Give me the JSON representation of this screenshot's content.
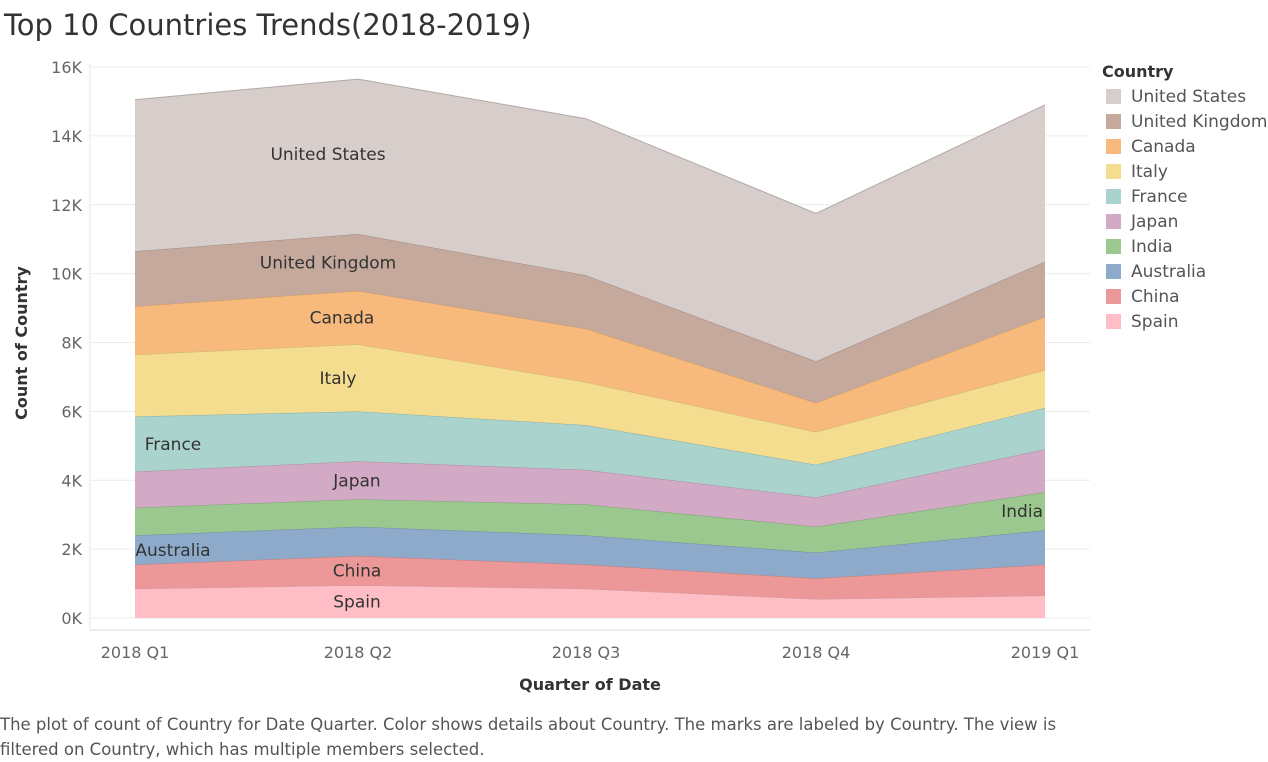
{
  "chart_data": {
    "type": "area",
    "stacked": true,
    "title": "Top 10 Countries Trends(2018-2019)",
    "xlabel": "Quarter of Date",
    "ylabel": "Count of Country",
    "categories": [
      "2018 Q1",
      "2018 Q2",
      "2018 Q3",
      "2018 Q4",
      "2019 Q1"
    ],
    "ylim": [
      0,
      16000
    ],
    "yticks": [
      0,
      2000,
      4000,
      6000,
      8000,
      10000,
      12000,
      14000,
      16000
    ],
    "ytick_labels": [
      "0K",
      "2K",
      "4K",
      "6K",
      "8K",
      "10K",
      "12K",
      "14K",
      "16K"
    ],
    "grid": true,
    "legend_title": "Country",
    "legend_position": "right",
    "series": [
      {
        "name": "Spain",
        "color": "#ffbec5",
        "values": [
          850,
          950,
          850,
          550,
          650
        ],
        "label_quarter": "2018 Q2"
      },
      {
        "name": "China",
        "color": "#ec9898",
        "values": [
          700,
          850,
          700,
          600,
          900
        ],
        "label_quarter": "2018 Q2"
      },
      {
        "name": "Australia",
        "color": "#8eaacb",
        "values": [
          850,
          850,
          850,
          750,
          1000
        ],
        "label_quarter": "2018 Q1"
      },
      {
        "name": "India",
        "color": "#9bc88f",
        "values": [
          800,
          800,
          900,
          750,
          1100
        ],
        "label_quarter": "2019 Q1"
      },
      {
        "name": "Japan",
        "color": "#d2aac5",
        "values": [
          1050,
          1100,
          1000,
          850,
          1250
        ],
        "label_quarter": "2018 Q2"
      },
      {
        "name": "France",
        "color": "#aad3ce",
        "values": [
          1600,
          1450,
          1300,
          950,
          1200
        ],
        "label_quarter": "2018 Q1"
      },
      {
        "name": "Italy",
        "color": "#f5dd8f",
        "values": [
          1800,
          1950,
          1250,
          950,
          1100
        ],
        "label_quarter": "2018 Q2"
      },
      {
        "name": "Canada",
        "color": "#f7ba7c",
        "values": [
          1400,
          1550,
          1550,
          850,
          1550
        ],
        "label_quarter": "2018 Q2"
      },
      {
        "name": "United Kingdom",
        "color": "#c4a99c",
        "values": [
          1600,
          1650,
          1550,
          1200,
          1600
        ],
        "label_quarter": "2018 Q2"
      },
      {
        "name": "United States",
        "color": "#d7cecb",
        "values": [
          4400,
          4500,
          4550,
          4300,
          4550
        ],
        "label_quarter": "2018 Q2"
      }
    ]
  },
  "legend": {
    "title": "Country",
    "items": [
      {
        "label": "United States",
        "color": "#d7cecb"
      },
      {
        "label": "United Kingdom",
        "color": "#c4a99c"
      },
      {
        "label": "Canada",
        "color": "#f7ba7c"
      },
      {
        "label": "Italy",
        "color": "#f5dd8f"
      },
      {
        "label": "France",
        "color": "#aad3ce"
      },
      {
        "label": "Japan",
        "color": "#d2aac5"
      },
      {
        "label": "India",
        "color": "#9bc88f"
      },
      {
        "label": "Australia",
        "color": "#8eaacb"
      },
      {
        "label": "China",
        "color": "#ec9898"
      },
      {
        "label": "Spain",
        "color": "#ffbec5"
      }
    ]
  },
  "caption": "The plot of count of Country for Date Quarter.  Color shows details about Country.  The marks are labeled by Country. The view is filtered on Country, which has multiple members selected."
}
